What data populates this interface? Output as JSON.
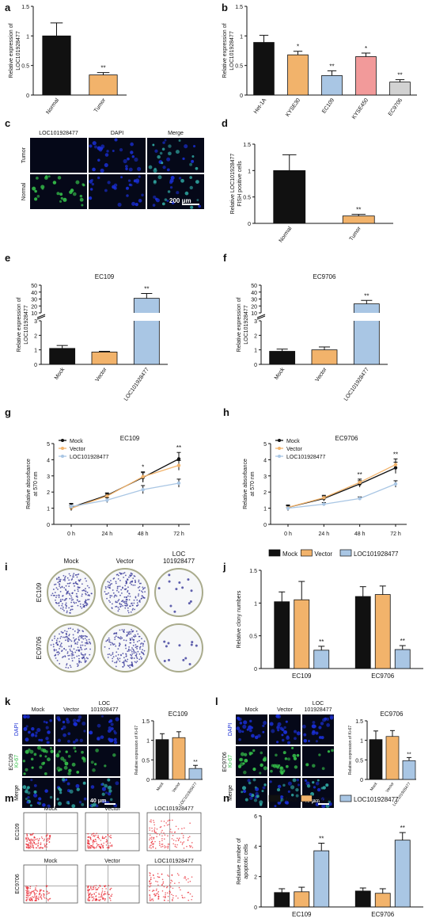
{
  "colors": {
    "black": "#111111",
    "orange": "#f2b36b",
    "blue": "#a9c6e4",
    "red": "#f29a9a",
    "grey": "#d2d2d2",
    "dapi": "#1a2fd6",
    "green": "#35c04a",
    "flow": "#e8202a"
  },
  "panels": [
    {
      "letter": "a",
      "type": "bar",
      "ylabel": [
        "Relative expression of",
        "LOC101928477"
      ],
      "ymax": 1.5,
      "yticks": [
        0,
        0.5,
        1,
        1.5
      ],
      "categories": [
        "Normal",
        "Tumor"
      ],
      "values": [
        1.0,
        0.34
      ],
      "errors": [
        0.22,
        0.04
      ],
      "colors": [
        "black",
        "orange"
      ],
      "sig": [
        "",
        "**"
      ]
    },
    {
      "letter": "b",
      "type": "bar",
      "ylabel": [
        "Relative expression of",
        "LOC101928477"
      ],
      "ymax": 1.5,
      "yticks": [
        0,
        0.5,
        1,
        1.5
      ],
      "categories": [
        "Het-1A",
        "KYSE30",
        "EC109",
        "KYSE450",
        "EC9706"
      ],
      "values": [
        0.89,
        0.68,
        0.33,
        0.65,
        0.22
      ],
      "errors": [
        0.12,
        0.06,
        0.08,
        0.06,
        0.04
      ],
      "colors": [
        "black",
        "orange",
        "blue",
        "red",
        "grey"
      ],
      "sig": [
        "",
        "*",
        "**",
        "*",
        "**"
      ]
    },
    {
      "letter": "c",
      "type": "fish",
      "cols": [
        "LOC101928477",
        "DAPI",
        "Merge"
      ],
      "rows": [
        "Tumor",
        "Normal"
      ],
      "scale": "200 μm"
    },
    {
      "letter": "d",
      "type": "bar",
      "ylabel": [
        "Relative LOC101928477",
        "FISH positive cells"
      ],
      "ymax": 1.5,
      "yticks": [
        0,
        0.5,
        1,
        1.5
      ],
      "categories": [
        "Normal",
        "Tumor"
      ],
      "values": [
        1.0,
        0.14
      ],
      "errors": [
        0.3,
        0.03
      ],
      "colors": [
        "black",
        "orange"
      ],
      "sig": [
        "",
        "**"
      ]
    },
    {
      "letter": "e",
      "type": "bar",
      "title": "EC109",
      "ylabel": [
        "Relative expression of",
        "LOC101928477"
      ],
      "broken": true,
      "lowTicks": [
        0,
        1,
        2,
        3
      ],
      "highTicks": [
        10,
        20,
        30,
        40,
        50
      ],
      "categories": [
        "Mock",
        "Vector",
        "LOC101928477"
      ],
      "values": [
        1.1,
        0.85,
        31
      ],
      "errors": [
        0.2,
        0.05,
        7
      ],
      "colors": [
        "black",
        "orange",
        "blue"
      ],
      "sig": [
        "",
        "",
        "**"
      ]
    },
    {
      "letter": "f",
      "type": "bar",
      "title": "EC9706",
      "ylabel": [
        "Relative expression of",
        "LOC101928477"
      ],
      "broken": true,
      "lowTicks": [
        0,
        1,
        2,
        3
      ],
      "highTicks": [
        10,
        20,
        30,
        40,
        50
      ],
      "categories": [
        "Mock",
        "Vector",
        "LOC101928477"
      ],
      "values": [
        0.9,
        1.0,
        23
      ],
      "errors": [
        0.15,
        0.2,
        5
      ],
      "colors": [
        "black",
        "orange",
        "blue"
      ],
      "sig": [
        "",
        "",
        "**"
      ]
    },
    {
      "letter": "g",
      "type": "line",
      "title": "EC109",
      "ylabel": [
        "Relative absorbance",
        "at 570 nm"
      ],
      "ymax": 5,
      "yticks": [
        0,
        1,
        2,
        3,
        4,
        5
      ],
      "x": [
        "0 h",
        "24 h",
        "48 h",
        "72 h"
      ],
      "series": [
        {
          "name": "Mock",
          "color": "black",
          "values": [
            1.05,
            1.8,
            2.9,
            4.05
          ],
          "errors": [
            0.2,
            0.15,
            0.3,
            0.4
          ]
        },
        {
          "name": "Vector",
          "color": "orange",
          "values": [
            1.0,
            1.75,
            2.95,
            3.65
          ],
          "errors": [
            0.15,
            0.15,
            0.3,
            0.3
          ]
        },
        {
          "name": "LOC101928477",
          "color": "blue",
          "values": [
            1.1,
            1.5,
            2.15,
            2.55
          ],
          "errors": [
            0.2,
            0.15,
            0.25,
            0.25
          ]
        }
      ],
      "sig": [
        "",
        "",
        "*",
        "**"
      ]
    },
    {
      "letter": "h",
      "type": "line",
      "title": "EC9706",
      "ylabel": [
        "Relative absorbance",
        "at 570 nm"
      ],
      "ymax": 5,
      "yticks": [
        0,
        1,
        2,
        3,
        4,
        5
      ],
      "x": [
        "0 h",
        "24 h",
        "48 h",
        "72 h"
      ],
      "series": [
        {
          "name": "Mock",
          "color": "black",
          "values": [
            1.05,
            1.6,
            2.5,
            3.5
          ],
          "errors": [
            0.15,
            0.15,
            0.2,
            0.35
          ]
        },
        {
          "name": "Vector",
          "color": "orange",
          "values": [
            1.05,
            1.65,
            2.6,
            3.7
          ],
          "errors": [
            0.15,
            0.15,
            0.2,
            0.35
          ]
        },
        {
          "name": "LOC101928477",
          "color": "blue",
          "values": [
            1.0,
            1.25,
            1.6,
            2.5
          ],
          "errors": [
            0.15,
            0.1,
            0.1,
            0.2
          ]
        }
      ],
      "sig": [
        "",
        "",
        "**",
        "**"
      ]
    },
    {
      "letter": "i",
      "type": "colony",
      "cols": [
        "Mock",
        "Vector",
        "LOC 101928477"
      ],
      "rows": [
        "EC109",
        "EC9706"
      ]
    },
    {
      "letter": "j",
      "type": "grouped",
      "ylabel": [
        "Relative clony numbers"
      ],
      "ymax": 1.5,
      "yticks": [
        0,
        0.5,
        1,
        1.5
      ],
      "groups": [
        "EC109",
        "EC9706"
      ],
      "series": [
        {
          "name": "Mock",
          "color": "black",
          "values": [
            1.02,
            1.1
          ],
          "errors": [
            0.15,
            0.15
          ]
        },
        {
          "name": "Vector",
          "color": "orange",
          "values": [
            1.05,
            1.13
          ],
          "errors": [
            0.28,
            0.13
          ]
        },
        {
          "name": "LOC101928477",
          "color": "blue",
          "values": [
            0.28,
            0.29
          ],
          "errors": [
            0.06,
            0.06
          ]
        }
      ],
      "sig": [
        "",
        "",
        "**"
      ]
    },
    {
      "letter": "k",
      "type": "if",
      "cols": [
        "Mock",
        "Vector",
        "LOC 101928477"
      ],
      "rows": [
        "DAPI",
        "Ki-67",
        "Merge"
      ],
      "side": "EC109",
      "scale": "40 μm",
      "bar": {
        "title": "EC109",
        "ylabel": [
          "Relative expression of Ki-67"
        ],
        "ymax": 1.5,
        "yticks": [
          0,
          0.5,
          1,
          1.5
        ],
        "categories": [
          "Mock",
          "Vector",
          "LOC101928477"
        ],
        "values": [
          1.02,
          1.07,
          0.28
        ],
        "errors": [
          0.15,
          0.15,
          0.08
        ],
        "colors": [
          "black",
          "orange",
          "blue"
        ],
        "sig": [
          "",
          "",
          "**"
        ]
      }
    },
    {
      "letter": "l",
      "type": "if",
      "cols": [
        "Mock",
        "Vector",
        "LOC 101928477"
      ],
      "rows": [
        "DAPI",
        "Ki-67",
        "Merge"
      ],
      "side": "EC9706",
      "scale": "40 μm",
      "bar": {
        "title": "EC9706",
        "ylabel": [
          "Relative expression of Ki-67"
        ],
        "ymax": 1.5,
        "yticks": [
          0,
          0.5,
          1,
          1.5
        ],
        "categories": [
          "Mock",
          "Vector",
          "LOC101928477"
        ],
        "values": [
          1.02,
          1.1,
          0.48
        ],
        "errors": [
          0.22,
          0.15,
          0.08
        ],
        "colors": [
          "black",
          "orange",
          "blue"
        ],
        "sig": [
          "",
          "",
          "**"
        ]
      }
    },
    {
      "letter": "m",
      "type": "flow",
      "cells": [
        [
          "Mock",
          "Vector",
          "LOC101928477"
        ],
        [
          "Mock",
          "Vector",
          "LOC101928477"
        ]
      ],
      "rows": [
        "EC109",
        "EC9706"
      ]
    },
    {
      "letter": "n",
      "type": "grouped",
      "ylabel": [
        "Relative number of",
        "apoptotic cells"
      ],
      "ymax": 6,
      "yticks": [
        0,
        2,
        4,
        6
      ],
      "groups": [
        "EC109",
        "EC9706"
      ],
      "series": [
        {
          "name": "Mock",
          "color": "black",
          "values": [
            0.95,
            1.05
          ],
          "errors": [
            0.25,
            0.2
          ]
        },
        {
          "name": "Vector",
          "color": "orange",
          "values": [
            1.0,
            0.9
          ],
          "errors": [
            0.3,
            0.3
          ]
        },
        {
          "name": "LOC101928477",
          "color": "blue",
          "values": [
            3.7,
            4.4
          ],
          "errors": [
            0.5,
            0.5
          ]
        }
      ],
      "sig": [
        "",
        "",
        "**"
      ]
    }
  ]
}
